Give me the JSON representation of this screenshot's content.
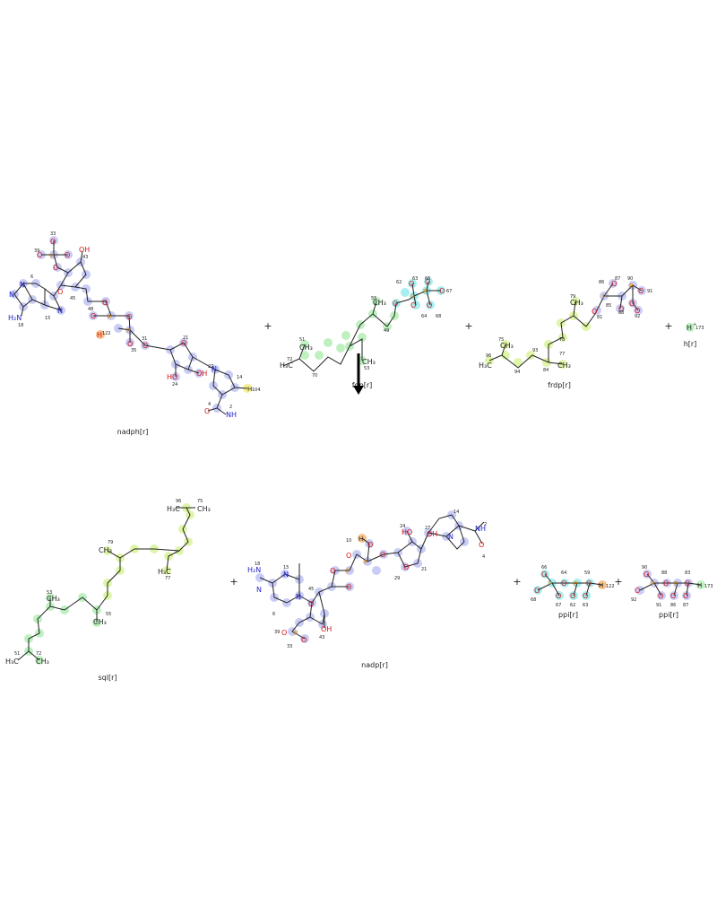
{
  "reaction": {
    "reactants": [
      {
        "id": "nadph",
        "label": "nadph[r]"
      },
      {
        "id": "fdp",
        "label": "fdp[r]"
      },
      {
        "id": "frdp",
        "label": "frdp[r]"
      },
      {
        "id": "h",
        "label": "h[r]"
      }
    ],
    "products": [
      {
        "id": "sql",
        "label": "sql[r]"
      },
      {
        "id": "nadp",
        "label": "nadp[r]"
      },
      {
        "id": "ppi1",
        "label": "ppi[r]"
      },
      {
        "id": "ppi2",
        "label": "ppi[r]"
      }
    ],
    "plus_sign": "+",
    "arrow_icon": "reaction-arrow-down-icon"
  },
  "colors": {
    "blue_highlight": "#c9ccf5",
    "green_highlight": "#bff0c0",
    "lime_highlight": "#dff5a8",
    "cyan_highlight": "#a6eef0",
    "orange_highlight": "#f7c08a",
    "yellow_highlight": "#f6f18a",
    "oxygen": "#d81414",
    "nitrogen": "#2222cc",
    "phosphorus": "#e08a00",
    "carbon_text": "#222222"
  }
}
